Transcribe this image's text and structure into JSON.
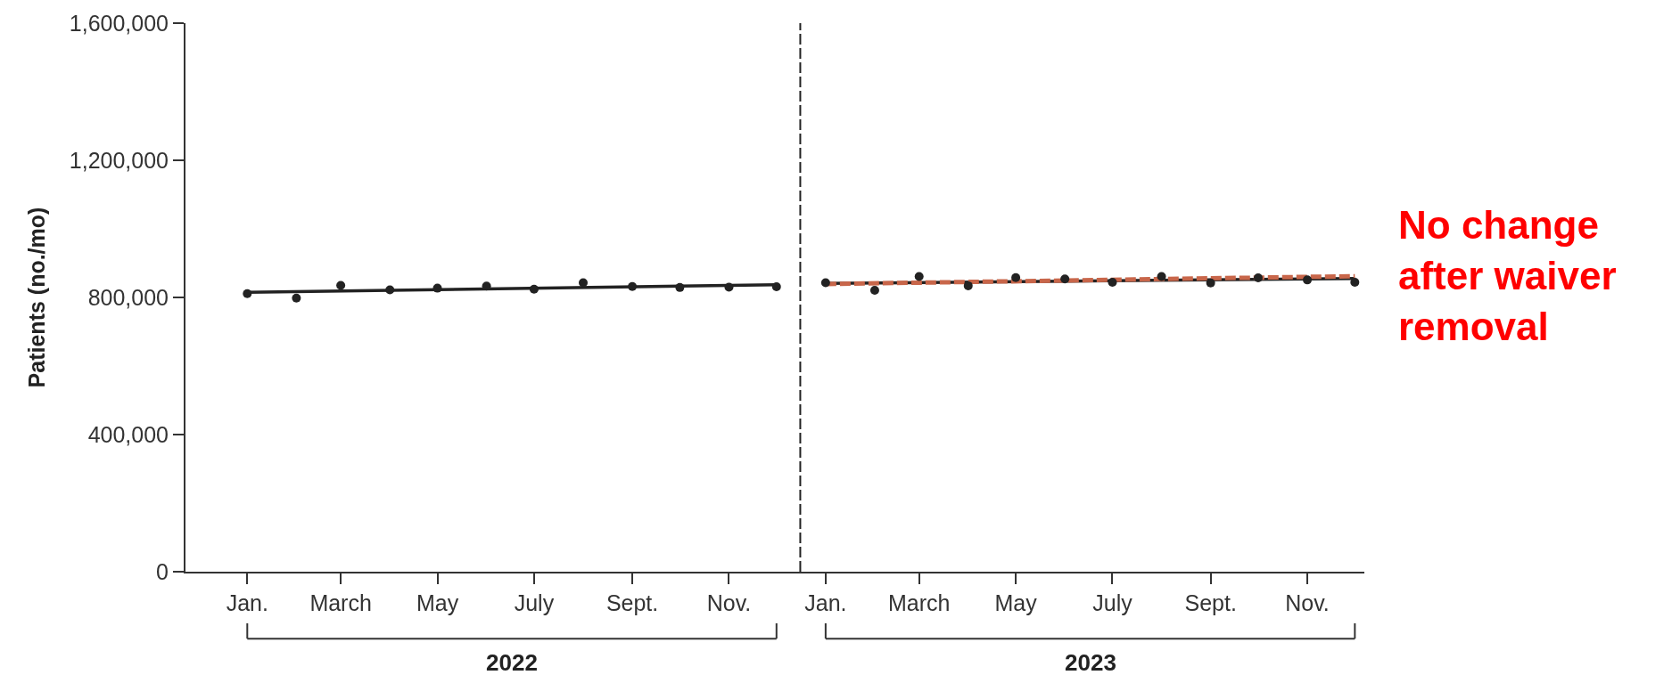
{
  "chart_data": {
    "type": "scatter",
    "ylabel": "Patients (no./mo)",
    "xlim": [
      "2021-11-23",
      "2023-12-07"
    ],
    "ylim": [
      0,
      1600000
    ],
    "xticks": [
      {
        "value": "2022-01",
        "label": "Jan."
      },
      {
        "value": "2022-03",
        "label": "March"
      },
      {
        "value": "2022-05",
        "label": "May"
      },
      {
        "value": "2022-07",
        "label": "July"
      },
      {
        "value": "2022-09",
        "label": "Sept."
      },
      {
        "value": "2022-11",
        "label": "Nov."
      },
      {
        "value": "2023-01",
        "label": "Jan."
      },
      {
        "value": "2023-03",
        "label": "March"
      },
      {
        "value": "2023-05",
        "label": "May"
      },
      {
        "value": "2023-07",
        "label": "July"
      },
      {
        "value": "2023-09",
        "label": "Sept."
      },
      {
        "value": "2023-11",
        "label": "Nov."
      }
    ],
    "yticks": [
      {
        "value": 0,
        "label": "0"
      },
      {
        "value": 400000,
        "label": "400,000"
      },
      {
        "value": 800000,
        "label": "800,000"
      },
      {
        "value": 1200000,
        "label": "1,200,000"
      },
      {
        "value": 1600000,
        "label": "1,600,000"
      }
    ],
    "series": [
      {
        "color": "#222222",
        "marker": "circle",
        "x": [
          "2022-01",
          "2022-02",
          "2022-03",
          "2022-04",
          "2022-05",
          "2022-06",
          "2022-07",
          "2022-08",
          "2022-09",
          "2022-10",
          "2022-11",
          "2022-12"
        ],
        "values": [
          811000,
          798000,
          835000,
          822000,
          827000,
          833000,
          824000,
          843000,
          832000,
          829000,
          830000,
          831000
        ]
      },
      {
        "color": "#222222",
        "marker": "circle",
        "x": [
          "2023-01",
          "2023-02",
          "2023-03",
          "2023-04",
          "2023-05",
          "2023-06",
          "2023-07",
          "2023-08",
          "2023-09",
          "2023-10",
          "2023-11",
          "2023-12"
        ],
        "values": [
          843000,
          821000,
          861000,
          834000,
          858000,
          854000,
          844000,
          861000,
          842000,
          857000,
          851000,
          844000
        ]
      },
      {
        "type": "line",
        "color": "#222222",
        "marker": "none",
        "line_style": "solid",
        "x": [
          "2022-01",
          "2022-12"
        ],
        "values": [
          815000,
          837000
        ]
      },
      {
        "type": "line",
        "color": "#222222",
        "marker": "none",
        "line_style": "solid",
        "x": [
          "2023-01",
          "2023-12"
        ],
        "values": [
          841000,
          855000
        ]
      },
      {
        "type": "line",
        "color": "#c8664a",
        "marker": "none",
        "line_style": "dashed",
        "x": [
          "2023-01",
          "2023-12"
        ],
        "values": [
          839000,
          862000
        ]
      }
    ],
    "ref_lines": [
      {
        "axis": "x",
        "value": "2022-12-16",
        "color": "#222222",
        "line_style": "dashed"
      }
    ],
    "annotations": [
      "2022",
      "2023",
      "No change\nafter waiver\nremoval"
    ]
  }
}
